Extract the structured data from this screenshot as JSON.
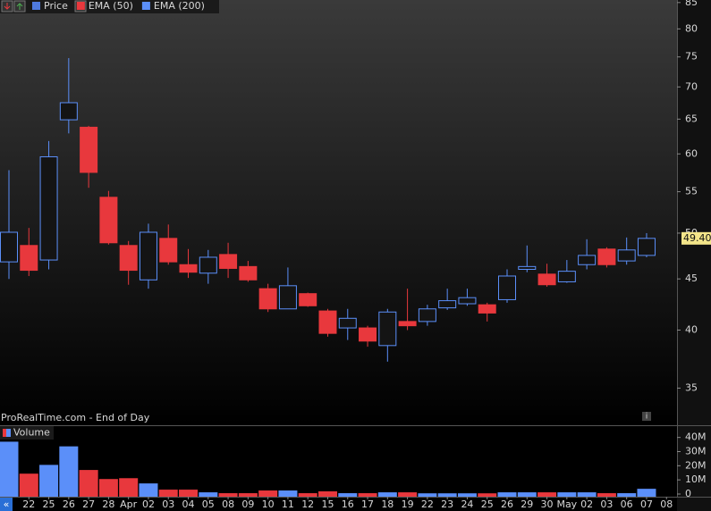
{
  "chart_data": [
    {
      "type": "candlestick",
      "legend": [
        {
          "name": "Price",
          "color": "#4f7be0"
        },
        {
          "name": "EMA (50)",
          "color": "#e8383d"
        },
        {
          "name": "EMA (200)",
          "color": "#5b8ff9"
        }
      ],
      "annotation": "ProRealTime.com - End of Day",
      "up_color": "#5b8ff9",
      "down_color": "#e8383d",
      "categories": [
        null,
        "22",
        "25",
        "26",
        "27",
        "28",
        "Apr",
        "02",
        "03",
        "04",
        "05",
        "08",
        "09",
        "10",
        "11",
        "12",
        "15",
        "16",
        "17",
        "18",
        "19",
        "22",
        "23",
        "24",
        "25",
        "26",
        "29",
        "30",
        "May",
        "02",
        "03",
        "06",
        "07",
        "08"
      ],
      "open": [
        46.8,
        48.6,
        47,
        64.9,
        63.8,
        54.3,
        48.6,
        44.9,
        49.4,
        46.5,
        45.6,
        47.6,
        46.3,
        44,
        42,
        43.5,
        41.8,
        40.2,
        40.2,
        38.6,
        40.8,
        40.8,
        42.1,
        42.5,
        42.4,
        42.9,
        46,
        45.5,
        44.7,
        46.5,
        48.2,
        46.9,
        47.5,
        null
      ],
      "high": [
        57.8,
        50.6,
        61.8,
        74.8,
        64,
        55.1,
        49.1,
        51.1,
        51,
        48.2,
        48.1,
        48.9,
        46.9,
        44.5,
        46.2,
        43.6,
        42,
        42,
        40.4,
        42,
        44,
        42.4,
        44,
        44,
        42.6,
        46,
        48.6,
        46.6,
        47,
        49.3,
        48.4,
        49.5,
        50,
        null
      ],
      "low": [
        45,
        45.3,
        46,
        62.9,
        55.5,
        48.7,
        44.4,
        44,
        46.5,
        45.1,
        44.5,
        45.1,
        44.7,
        41.7,
        42,
        42.2,
        39.4,
        39.1,
        38.5,
        37.2,
        40,
        40.4,
        41.9,
        42.3,
        40.8,
        42.6,
        45.7,
        44.2,
        44.6,
        46,
        46.2,
        46.5,
        47.3,
        null
      ],
      "close": [
        50.1,
        45.9,
        59.6,
        67.5,
        57.5,
        48.9,
        45.9,
        50.1,
        46.8,
        45.7,
        47.3,
        46.1,
        44.9,
        42,
        44.3,
        42.3,
        39.7,
        41.1,
        39,
        41.7,
        40.4,
        42,
        42.8,
        43.1,
        41.6,
        45.3,
        46.3,
        44.4,
        45.8,
        47.5,
        46.5,
        48.1,
        49.4,
        null
      ],
      "last_price": {
        "value": 49.4,
        "label": "49.40"
      },
      "log_scale": true,
      "ylim": [
        32.2,
        85.5
      ],
      "yticks": [
        35,
        40,
        45,
        50,
        55,
        60,
        65,
        70,
        75,
        80,
        85
      ]
    },
    {
      "type": "bar",
      "title": "Volume",
      "values": [
        37000000,
        14400000,
        20600000,
        33700000,
        17000000,
        10600000,
        11200000,
        7500000,
        3100000,
        3100000,
        1200000,
        600000,
        600000,
        2500000,
        2500000,
        600000,
        1900000,
        600000,
        600000,
        1200000,
        1200000,
        500000,
        500000,
        500000,
        500000,
        1200000,
        1200000,
        1200000,
        1200000,
        1200000,
        600000,
        600000,
        3700000,
        null
      ],
      "ylim": [
        0,
        48000000
      ],
      "yticks": [
        {
          "value": 40000000,
          "label": "40M"
        },
        {
          "value": 30000000,
          "label": "30M"
        },
        {
          "value": 20000000,
          "label": "20M"
        },
        {
          "value": 10000000,
          "label": "10M"
        },
        0
      ]
    }
  ]
}
